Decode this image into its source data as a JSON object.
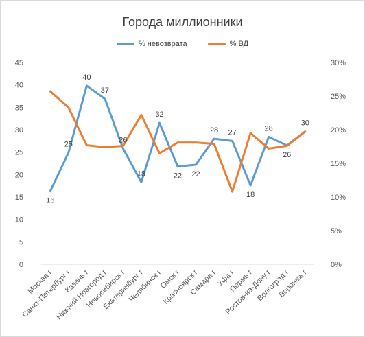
{
  "chart_data": {
    "type": "line",
    "title": "Города миллионники",
    "categories": [
      "Москва г",
      "Санкт-Петербург г",
      "Казань г",
      "Нижний Новгород г",
      "Новосибирск г",
      "Екатеринбург г",
      "Челябинск г",
      "Омск г",
      "Красноярск г",
      "Самара г",
      "Уфа г",
      "Пермь г",
      "Ростов-на-Дону г",
      "Волгоград г",
      "Воронеж г"
    ],
    "series": [
      {
        "name": "% невозврата",
        "axis": "left",
        "color": "#5b9bd5",
        "values": [
          16.3,
          24.9,
          39.8,
          36.9,
          25.8,
          18.3,
          31.5,
          21.8,
          22.2,
          28.0,
          27.5,
          17.6,
          28.4,
          26.5,
          29.6
        ],
        "labels": [
          "16",
          "25",
          "40",
          "37",
          "26",
          "18",
          "32",
          "22",
          "22",
          "28",
          "27",
          "18",
          "28",
          "26",
          "30"
        ]
      },
      {
        "name": "% ВД",
        "axis": "right",
        "color": "#ed7d31",
        "values": [
          25.7,
          23.3,
          17.7,
          17.4,
          17.6,
          22.2,
          16.5,
          18.1,
          18.1,
          17.9,
          10.8,
          19.5,
          17.2,
          17.6,
          19.7
        ]
      }
    ],
    "y_left": {
      "min": 0,
      "max": 45,
      "step": 5,
      "ticks": [
        "0",
        "5",
        "10",
        "15",
        "20",
        "25",
        "30",
        "35",
        "40",
        "45"
      ]
    },
    "y_right": {
      "min": 0,
      "max": 30,
      "step": 5,
      "ticks": [
        "0%",
        "5%",
        "10%",
        "15%",
        "20%",
        "25%",
        "30%"
      ]
    },
    "grid": false,
    "legend_position": "top"
  }
}
